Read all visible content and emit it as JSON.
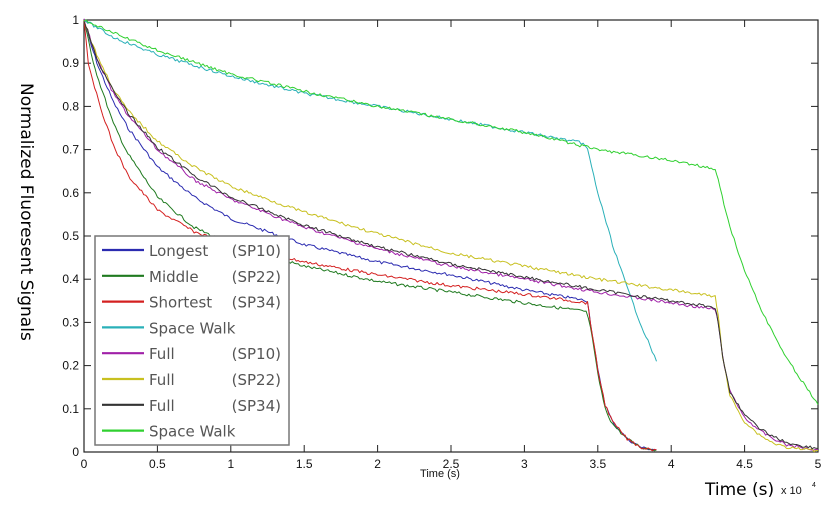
{
  "chart_data": {
    "type": "line",
    "title": "",
    "xlabel": "Time (s)",
    "xlabel_overlay": "Time (s)",
    "x_exponent_label": "x 10",
    "x_exponent": "4",
    "ylabel": "Normalized Fluoresent Signals",
    "xlim": [
      0,
      5
    ],
    "ylim": [
      0,
      1
    ],
    "xticks": [
      0,
      0.5,
      1,
      1.5,
      2,
      2.5,
      3,
      3.5,
      4,
      4.5,
      5
    ],
    "xtick_labels": [
      "0",
      "0.5",
      "1",
      "1.5",
      "2",
      "2.5",
      "3",
      "3.5",
      "4",
      "4.5",
      "5"
    ],
    "yticks": [
      0,
      0.1,
      0.2,
      0.3,
      0.4,
      0.5,
      0.6,
      0.7,
      0.8,
      0.9,
      1
    ],
    "ytick_labels": [
      "0",
      "0.1",
      "0.2",
      "0.3",
      "0.4",
      "0.5",
      "0.6",
      "0.7",
      "0.8",
      "0.9",
      "1"
    ],
    "grid": false,
    "legend_position": "bottom-left",
    "series": [
      {
        "name": "Longest  (SP10)",
        "label_main": "Longest",
        "label_tag": "(SP10)",
        "color": "#2b2bb0",
        "x": [
          0,
          0.05,
          0.1,
          0.2,
          0.3,
          0.5,
          0.75,
          1.0,
          1.5,
          2.0,
          2.5,
          3.0,
          3.43,
          3.45,
          3.5,
          3.55,
          3.6,
          3.7,
          3.8,
          3.9
        ],
        "y": [
          1.0,
          0.94,
          0.89,
          0.81,
          0.75,
          0.66,
          0.59,
          0.54,
          0.48,
          0.44,
          0.41,
          0.375,
          0.35,
          0.3,
          0.19,
          0.11,
          0.07,
          0.03,
          0.01,
          0.005
        ]
      },
      {
        "name": "Middle   (SP22)",
        "label_main": "Middle",
        "label_tag": "(SP22)",
        "color": "#1f7a1f",
        "x": [
          0,
          0.05,
          0.1,
          0.2,
          0.3,
          0.5,
          0.75,
          1.0,
          1.5,
          2.0,
          2.5,
          3.0,
          3.42,
          3.45,
          3.5,
          3.55,
          3.6,
          3.7,
          3.8,
          3.9
        ],
        "y": [
          1.0,
          0.92,
          0.86,
          0.76,
          0.69,
          0.59,
          0.52,
          0.48,
          0.43,
          0.395,
          0.37,
          0.345,
          0.325,
          0.29,
          0.18,
          0.1,
          0.065,
          0.03,
          0.01,
          0.005
        ]
      },
      {
        "name": "Shortest (SP34)",
        "label_main": "Shortest",
        "label_tag": "(SP34)",
        "color": "#d42020",
        "x": [
          0,
          0.03,
          0.1,
          0.2,
          0.3,
          0.5,
          0.75,
          1.0,
          1.5,
          2.0,
          2.5,
          3.0,
          3.43,
          3.45,
          3.5,
          3.55,
          3.6,
          3.7,
          3.8,
          3.9
        ],
        "y": [
          1.0,
          0.9,
          0.81,
          0.71,
          0.64,
          0.56,
          0.51,
          0.48,
          0.44,
          0.41,
          0.385,
          0.365,
          0.345,
          0.3,
          0.19,
          0.11,
          0.07,
          0.03,
          0.01,
          0.005
        ]
      },
      {
        "name": "Space Walk",
        "label_main": "Space Walk",
        "label_tag": "",
        "color": "#2ab0b8",
        "x": [
          0,
          0.2,
          0.5,
          1.0,
          1.5,
          2.0,
          2.5,
          3.0,
          3.4,
          3.43,
          3.5,
          3.6,
          3.7,
          3.8,
          3.9
        ],
        "y": [
          1.0,
          0.96,
          0.92,
          0.87,
          0.83,
          0.8,
          0.77,
          0.74,
          0.715,
          0.7,
          0.6,
          0.48,
          0.38,
          0.29,
          0.21
        ]
      },
      {
        "name": "Full       (SP10)",
        "label_main": "Full",
        "label_tag": "(SP10)",
        "color": "#a020a8",
        "x": [
          0,
          0.05,
          0.1,
          0.2,
          0.3,
          0.5,
          0.75,
          1.0,
          1.5,
          2.0,
          2.5,
          3.0,
          3.5,
          4.0,
          4.3,
          4.32,
          4.35,
          4.4,
          4.5,
          4.6,
          4.7,
          4.8,
          5.0
        ],
        "y": [
          1.0,
          0.95,
          0.9,
          0.83,
          0.78,
          0.7,
          0.63,
          0.585,
          0.52,
          0.47,
          0.43,
          0.4,
          0.37,
          0.345,
          0.33,
          0.3,
          0.22,
          0.14,
          0.08,
          0.05,
          0.03,
          0.015,
          0.005
        ]
      },
      {
        "name": "Full       (SP22)",
        "label_main": "Full",
        "label_tag": "(SP22)",
        "color": "#c8c020",
        "x": [
          0,
          0.05,
          0.1,
          0.2,
          0.3,
          0.5,
          0.75,
          1.0,
          1.5,
          2.0,
          2.5,
          3.0,
          3.5,
          4.0,
          4.3,
          4.32,
          4.35,
          4.4,
          4.5,
          4.6,
          4.7,
          4.8,
          5.0
        ],
        "y": [
          1.0,
          0.95,
          0.91,
          0.84,
          0.79,
          0.72,
          0.66,
          0.615,
          0.555,
          0.505,
          0.46,
          0.43,
          0.4,
          0.375,
          0.36,
          0.32,
          0.22,
          0.13,
          0.07,
          0.04,
          0.02,
          0.01,
          0.003
        ]
      },
      {
        "name": "Full       (SP34)",
        "label_main": "Full",
        "label_tag": "(SP34)",
        "color": "#333333",
        "x": [
          0,
          0.05,
          0.1,
          0.2,
          0.3,
          0.5,
          0.75,
          1.0,
          1.5,
          2.0,
          2.5,
          3.0,
          3.5,
          4.0,
          4.3,
          4.32,
          4.35,
          4.4,
          4.5,
          4.6,
          4.7,
          4.8,
          5.0
        ],
        "y": [
          1.0,
          0.95,
          0.9,
          0.835,
          0.785,
          0.705,
          0.64,
          0.59,
          0.525,
          0.475,
          0.435,
          0.405,
          0.375,
          0.35,
          0.335,
          0.3,
          0.22,
          0.14,
          0.085,
          0.055,
          0.035,
          0.02,
          0.008
        ]
      },
      {
        "name": "Space Walk",
        "label_main": "Space Walk",
        "label_tag": "",
        "color": "#30d030",
        "x": [
          0,
          0.2,
          0.5,
          1.0,
          1.5,
          2.0,
          2.5,
          3.0,
          3.5,
          4.0,
          4.3,
          4.32,
          4.4,
          4.5,
          4.6,
          4.7,
          4.8,
          4.9,
          5.0
        ],
        "y": [
          1.0,
          0.97,
          0.93,
          0.875,
          0.835,
          0.8,
          0.77,
          0.74,
          0.7,
          0.675,
          0.655,
          0.63,
          0.52,
          0.42,
          0.34,
          0.27,
          0.21,
          0.16,
          0.11
        ]
      }
    ]
  }
}
